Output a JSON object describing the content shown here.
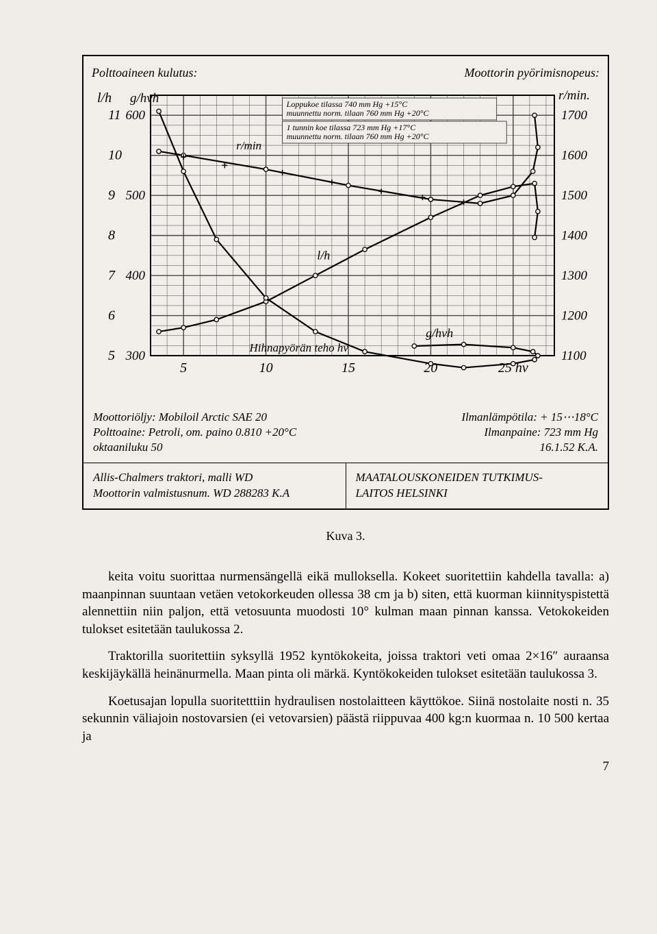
{
  "chart": {
    "title_left": "Polttoaineen kulutus:",
    "title_right": "Moottorin pyörimisnopeus:",
    "annotations": {
      "box1_line1": "Loppukoe tilassa 740 mm Hg +15°C",
      "box1_line2": "muunnettu norm. tilaan 760 mm Hg +20°C",
      "box2_line1": "1 tunnin koe tilassa 723 mm Hg +17°C",
      "box2_line2": "muunnettu norm. tilaan 760 mm Hg +20°C",
      "lh_label": "l/h",
      "ghvh_label": "g/hvh",
      "rmin_label": "r/min",
      "hihna_label": "Hihnapyörän teho hv"
    },
    "left_axis_primary": {
      "label": "l/h",
      "ticks": [
        5,
        6,
        7,
        8,
        9,
        10,
        11
      ]
    },
    "left_axis_secondary": {
      "label": "g/hvh",
      "ticks": [
        300,
        400,
        500,
        600
      ]
    },
    "right_axis": {
      "label": "r/min.",
      "ticks": [
        1100,
        1200,
        1300,
        1400,
        1500,
        1600,
        1700
      ]
    },
    "x_axis": {
      "ticks": [
        5,
        10,
        15,
        20,
        25
      ],
      "suffix": "hv"
    },
    "curves": {
      "rmin": [
        [
          3.5,
          1610
        ],
        [
          5,
          1600
        ],
        [
          10,
          1565
        ],
        [
          15,
          1525
        ],
        [
          20,
          1490
        ],
        [
          23,
          1480
        ],
        [
          25,
          1500
        ],
        [
          26.2,
          1560
        ],
        [
          26.5,
          1620
        ],
        [
          26.3,
          1700
        ]
      ],
      "lh": [
        [
          3.5,
          5.6
        ],
        [
          5,
          5.7
        ],
        [
          7,
          5.9
        ],
        [
          10,
          6.35
        ],
        [
          13,
          7.0
        ],
        [
          16,
          7.65
        ],
        [
          20,
          8.45
        ],
        [
          23,
          9.0
        ],
        [
          25,
          9.22
        ],
        [
          26.3,
          9.3
        ],
        [
          26.5,
          8.6
        ],
        [
          26.3,
          7.95
        ]
      ],
      "ghvh": [
        [
          3.5,
          605
        ],
        [
          5,
          530
        ],
        [
          7,
          445
        ],
        [
          10,
          372
        ],
        [
          13,
          330
        ],
        [
          16,
          305
        ],
        [
          20,
          290
        ],
        [
          22,
          285
        ],
        [
          25,
          290
        ],
        [
          26.3,
          295
        ],
        [
          26.5,
          300
        ],
        [
          26.2,
          305
        ],
        [
          25,
          310
        ],
        [
          22,
          314
        ],
        [
          19,
          312
        ]
      ]
    },
    "grid_color": "#444",
    "line_color": "#000",
    "bg": "#efeee9"
  },
  "notes": {
    "left1": "Moottoriöljy: Mobiloil Arctic SAE 20",
    "left2": "Polttoaine: Petroli, om. paino 0.810 +20°C",
    "left3": "oktaaniluku 50",
    "right1": "Ilmanlämpötila: + 15⋯18°C",
    "right2": "Ilmanpaine: 723 mm Hg",
    "right3": "16.1.52 K.A."
  },
  "footer": {
    "left_line1": "Allis-Chalmers traktori, malli WD",
    "left_line2": "Moottorin valmistusnum. WD 288283 K.A",
    "right_line1": "MAATALOUSKONEIDEN TUTKIMUS-",
    "right_line2": "LAITOS   HELSINKI"
  },
  "caption": "Kuva 3.",
  "para1": "keita voitu suorittaa nurmensängellä eikä mulloksella. Kokeet suoritettiin kahdella tavalla: a) maanpinnan suuntaan vetäen vetokorkeuden ollessa 38 cm ja b) siten, että kuorman kiinnityspistettä alennettiin niin paljon, että vetosuunta muodosti 10° kulman maan pinnan kanssa. Vetokokeiden tulokset esitetään taulukossa 2.",
  "para2": "Traktorilla suoritettiin syksyllä 1952 kyntökokeita, joissa traktori veti omaa 2×16″ auraansa keskijäykällä heinänurmella. Maan pinta oli märkä. Kyntökokeiden tulokset esitetään taulukossa 3.",
  "para3": "Koetusajan lopulla suoritetttiin hydraulisen nostolaitteen käyttökoe. Siinä nostolaite nosti n. 35 sekunnin väliajoin nostovarsien (ei vetovarsien) päästä riippuvaa 400 kg:n kuormaa n. 10 500 kertaa ja",
  "pagenum": "7"
}
